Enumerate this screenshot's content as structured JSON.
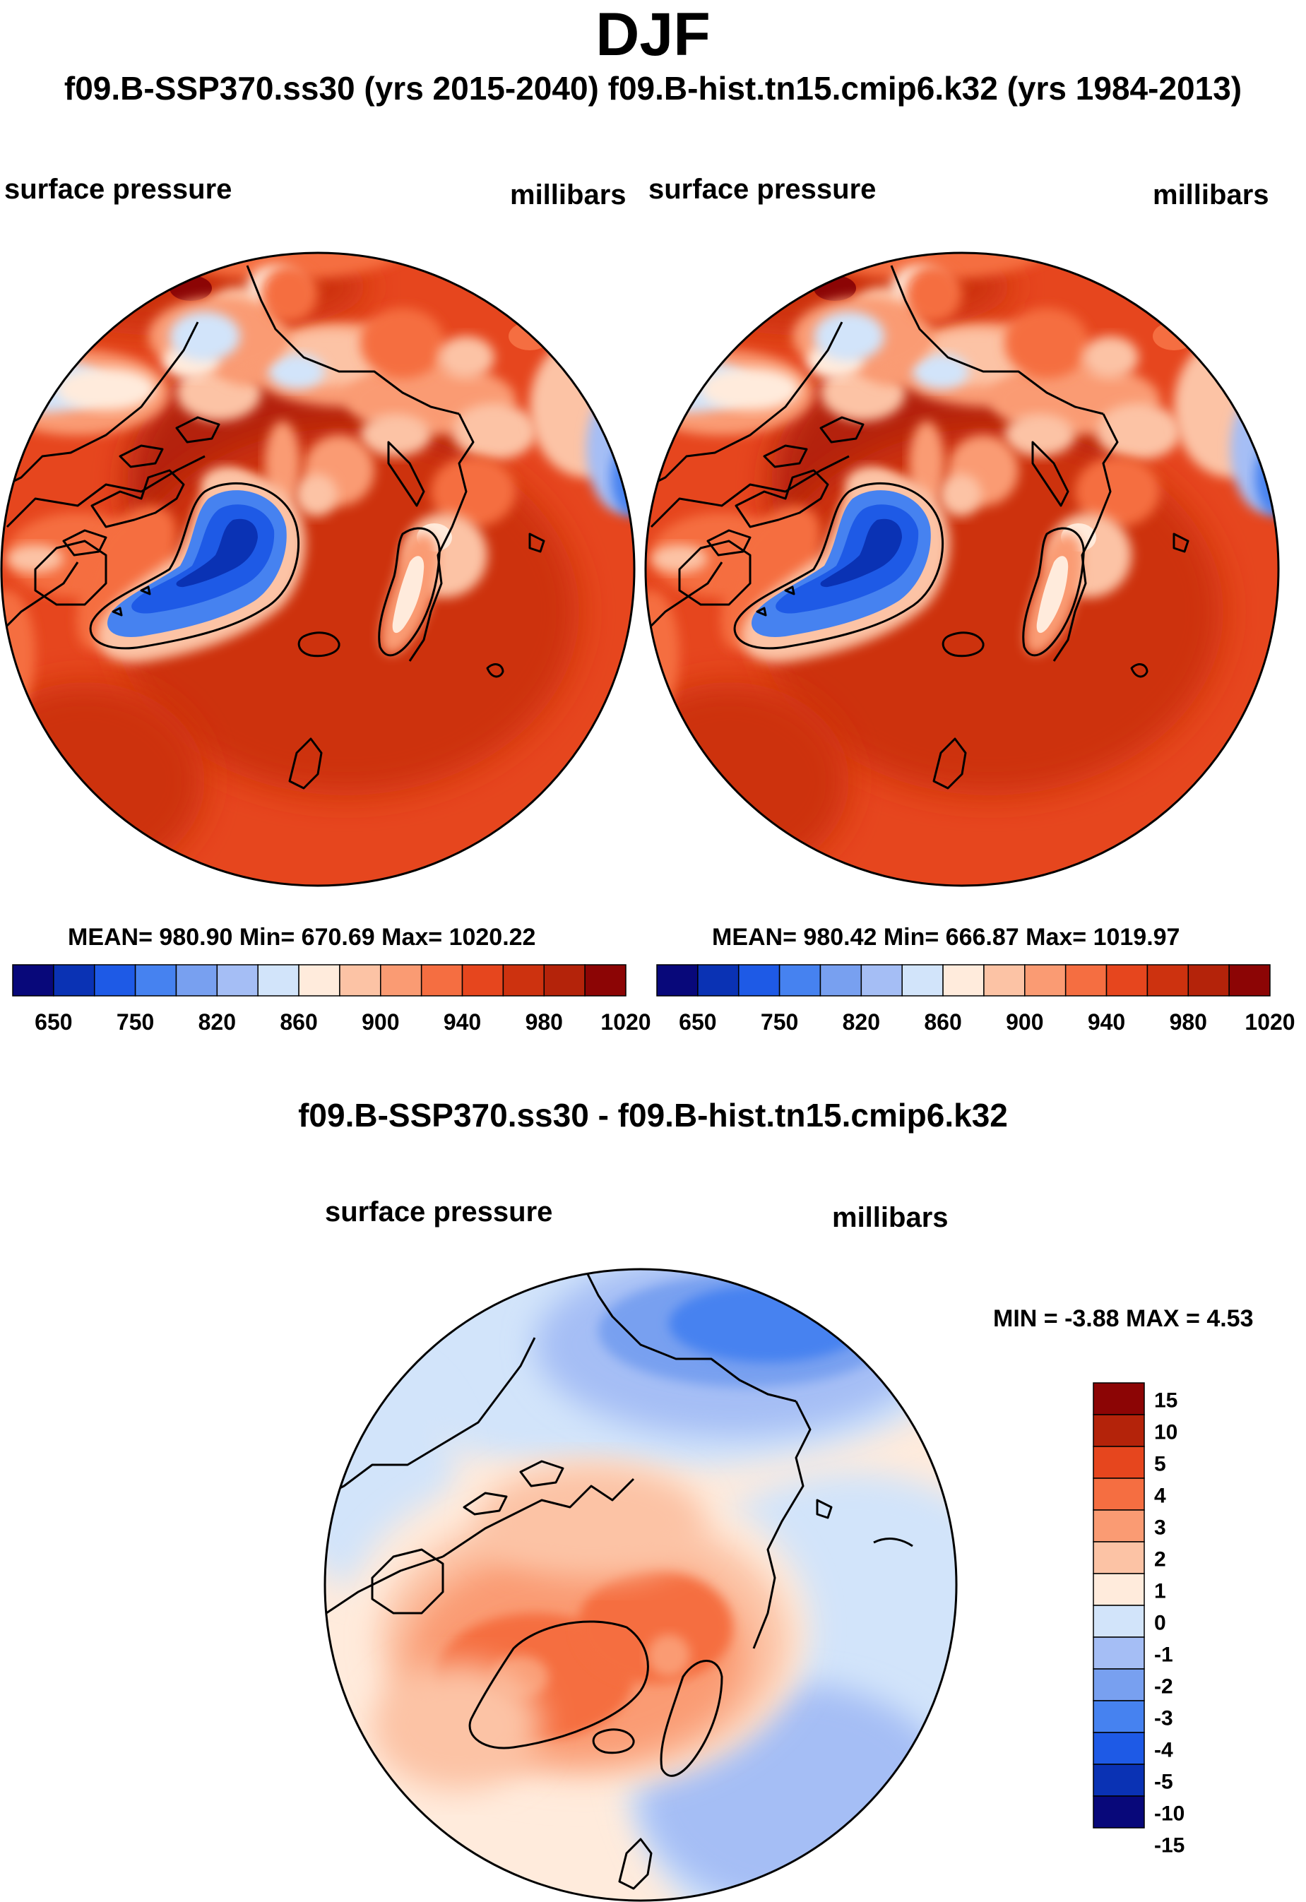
{
  "figure": {
    "season": "DJF",
    "case_titles": "f09.B-SSP370.ss30 (yrs 2015-2040)  f09.B-hist.tn15.cmip6.k32 (yrs 1984-2013)",
    "diff_title": "f09.B-SSP370.ss30 - f09.B-hist.tn15.cmip6.k32"
  },
  "panels": {
    "left": {
      "variable": "surface pressure",
      "units": "millibars",
      "stats": "MEAN= 980.90  Min= 670.69  Max= 1020.22"
    },
    "right": {
      "variable": "surface pressure",
      "units": "millibars",
      "stats": "MEAN= 980.42  Min= 666.87  Max= 1019.97"
    },
    "diff": {
      "variable": "surface pressure",
      "units": "millibars",
      "stats": "MIN =  -3.88 MAX =   4.53"
    }
  },
  "chart_data": [
    {
      "type": "heatmap",
      "title": "surface pressure",
      "units": "millibars",
      "projection": "north polar stereographic",
      "mean": 980.9,
      "min": 670.69,
      "max": 1020.22,
      "colorbar_labels": [
        "650",
        "750",
        "820",
        "860",
        "900",
        "940",
        "980",
        "1020"
      ],
      "colors": [
        "#08087a",
        "#0a32b4",
        "#1e5ae6",
        "#4682f0",
        "#78a0f0",
        "#a5bef5",
        "#d2e4fa",
        "#ffebdc",
        "#fcc3a5",
        "#fa9b73",
        "#f56e41",
        "#e6461e",
        "#cd320f",
        "#b4230a",
        "#8c0505"
      ]
    },
    {
      "type": "heatmap",
      "title": "surface pressure",
      "units": "millibars",
      "projection": "north polar stereographic",
      "mean": 980.42,
      "min": 666.87,
      "max": 1019.97,
      "colorbar_labels": [
        "650",
        "750",
        "820",
        "860",
        "900",
        "940",
        "980",
        "1020"
      ],
      "colors": [
        "#08087a",
        "#0a32b4",
        "#1e5ae6",
        "#4682f0",
        "#78a0f0",
        "#a5bef5",
        "#d2e4fa",
        "#ffebdc",
        "#fcc3a5",
        "#fa9b73",
        "#f56e41",
        "#e6461e",
        "#cd320f",
        "#b4230a",
        "#8c0505"
      ]
    },
    {
      "type": "heatmap",
      "title": "surface pressure",
      "units": "millibars",
      "projection": "north polar stereographic",
      "min": -3.88,
      "max": 4.53,
      "colorbar_labels": [
        "15",
        "10",
        "5",
        "4",
        "3",
        "2",
        "1",
        "0",
        "-1",
        "-2",
        "-3",
        "-4",
        "-5",
        "-10",
        "-15"
      ],
      "colors": [
        "#8c0505",
        "#b4230a",
        "#e6461e",
        "#f56e41",
        "#fa9b73",
        "#fcc3a5",
        "#ffebdc",
        "#d2e4fa",
        "#a5bef5",
        "#78a0f0",
        "#4682f0",
        "#1e5ae6",
        "#0a32b4",
        "#08087a"
      ]
    }
  ]
}
